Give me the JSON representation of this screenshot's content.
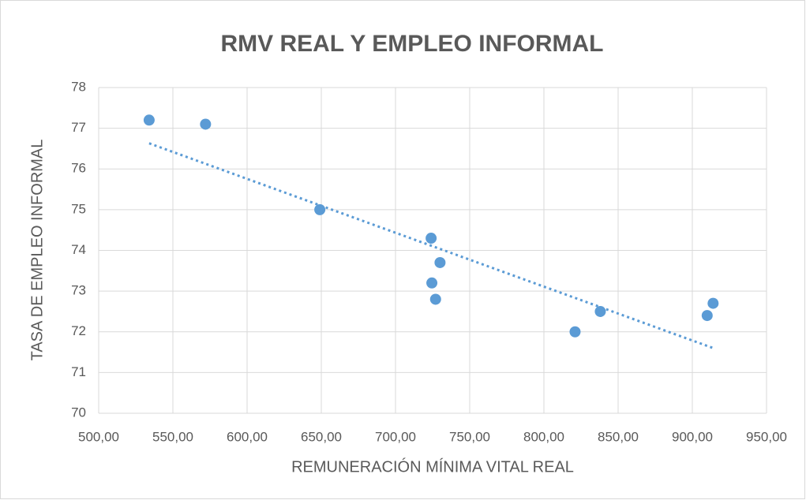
{
  "chart_data": {
    "type": "scatter",
    "title": "RMV REAL Y EMPLEO INFORMAL",
    "x_label": "REMUNERACIÓN MÍNIMA VITAL REAL",
    "y_label": "TASA DE EMPLEO INFORMAL",
    "series": [
      {
        "color": "#5b9bd5",
        "x": [
          534,
          572,
          649,
          724,
          730,
          724.5,
          727,
          821,
          838,
          910,
          914
        ],
        "values": [
          77.2,
          77.1,
          75.0,
          74.3,
          73.7,
          73.2,
          72.8,
          72.0,
          72.5,
          72.4,
          72.7
        ]
      }
    ],
    "trendline": "linear",
    "xlim": [
      500,
      950
    ],
    "xticks": [
      {
        "value": 500,
        "label": "500,00"
      },
      {
        "value": 550,
        "label": "550,00"
      },
      {
        "value": 600,
        "label": "600,00"
      },
      {
        "value": 650,
        "label": "650,00"
      },
      {
        "value": 700,
        "label": "700,00"
      },
      {
        "value": 750,
        "label": "750,00"
      },
      {
        "value": 800,
        "label": "800,00"
      },
      {
        "value": 850,
        "label": "850,00"
      },
      {
        "value": 900,
        "label": "900,00"
      },
      {
        "value": 950,
        "label": "950,00"
      }
    ],
    "ylim": [
      70,
      78
    ],
    "yticks": [
      70,
      71,
      72,
      73,
      74,
      75,
      76,
      77,
      78
    ],
    "grid": true
  }
}
